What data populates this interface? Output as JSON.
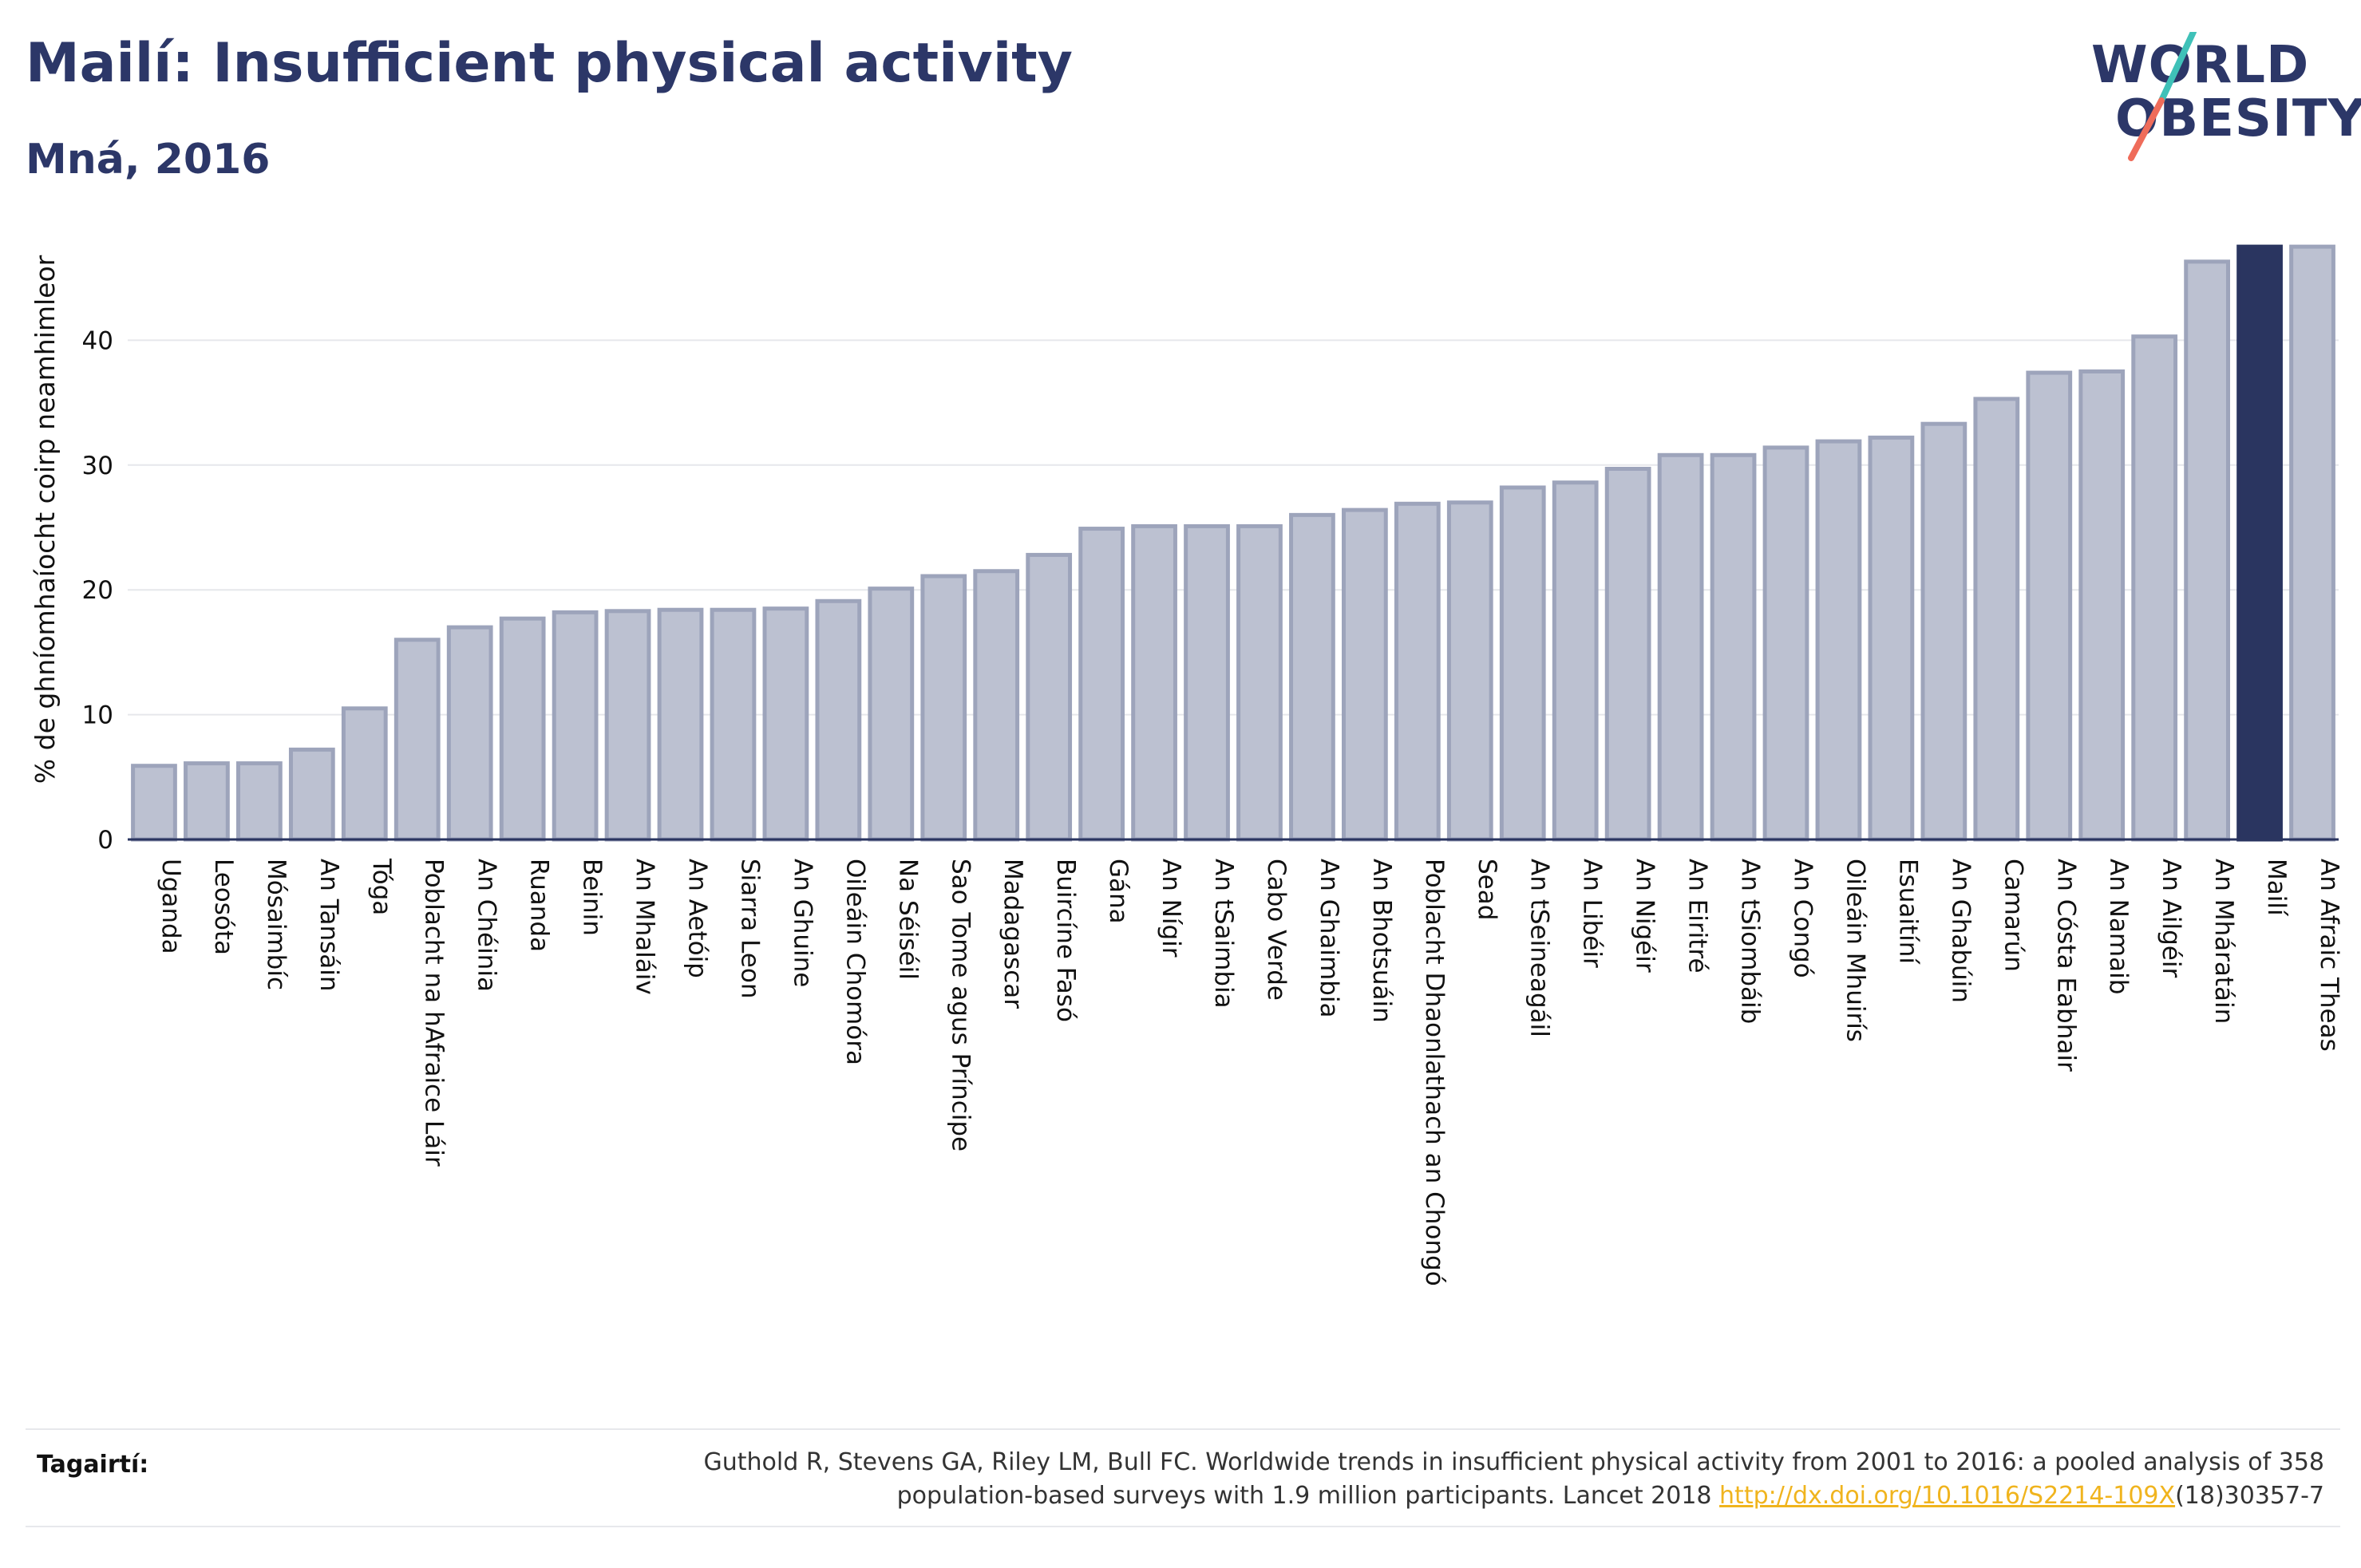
{
  "header": {
    "title": "Mailí: Insufficient physical activity",
    "subtitle": "Mná, 2016"
  },
  "logo": {
    "line1": "WORLD",
    "line2": "OBESITY",
    "colors": {
      "text": "#2c3768",
      "slash_top": "#3fc1b8",
      "slash_bottom": "#ef6c5a"
    }
  },
  "colors": {
    "bar_fill": "#bcc1d1",
    "bar_stroke": "#9da4bb",
    "highlight_fill": "#2a3560",
    "axis_text": "#111111",
    "grid": "#e6e7eb"
  },
  "chart_data": {
    "type": "bar",
    "ylabel": "% de ghníomhaíocht coirp neamhimleor",
    "xlabel": "",
    "ylim": [
      0,
      50
    ],
    "yticks": [
      0,
      10,
      20,
      30,
      40
    ],
    "grid": true,
    "highlight": "Mailí",
    "categories": [
      "Uganda",
      "Leosóta",
      "Mósaimbíc",
      "An Tansáin",
      "Tóga",
      "Poblacht na hAfraice Láir",
      "An Chéinia",
      "Ruanda",
      "Beinin",
      "An Mhaláiv",
      "An Aetóip",
      "Siarra Leon",
      "An Ghuine",
      "Oileáin Chomóra",
      "Na Séiséil",
      "Sao Tome agus Príncipe",
      "Madagascar",
      "Buircíne Fasó",
      "Gána",
      "An Nígir",
      "An tSaimbia",
      "Cabo Verde",
      "An Ghaimbia",
      "An Bhotsuáin",
      "Poblacht Dhaonlathach an Chongó",
      "Sead",
      "An tSeineagáil",
      "An Libéir",
      "An Nigéir",
      "An Eiritré",
      "An tSiombáib",
      "An Congó",
      "Oileáin Mhuirís",
      "Esuaitíní",
      "An Ghabúin",
      "Camarún",
      "An Cósta Eabhair",
      "An Namaib",
      "An Ailgéir",
      "An Mháratáin",
      "Mailí",
      "An Afraic Theas"
    ],
    "values": [
      5.9,
      6.1,
      6.1,
      7.2,
      10.5,
      16.0,
      17.0,
      17.7,
      18.2,
      18.3,
      18.4,
      18.4,
      18.5,
      19.1,
      20.1,
      21.1,
      21.5,
      22.8,
      24.9,
      25.1,
      25.1,
      25.1,
      26.0,
      26.4,
      26.9,
      27.0,
      28.2,
      28.6,
      29.7,
      30.8,
      30.8,
      31.4,
      31.9,
      32.2,
      33.3,
      35.3,
      37.4,
      37.5,
      40.3,
      46.3,
      47.5,
      47.5
    ]
  },
  "footer": {
    "label": "Tagairtí:",
    "reference_line1": "Guthold R, Stevens GA, Riley LM, Bull FC. Worldwide trends in insufficient physical activity from 2001 to 2016: a pooled analysis of 358",
    "reference_line2_pre": "population-based surveys with 1.9 million participants. Lancet 2018 ",
    "reference_link": "http://dx.doi.org/10.1016/S2214-109X",
    "reference_line2_post": "(18)30357-7"
  }
}
